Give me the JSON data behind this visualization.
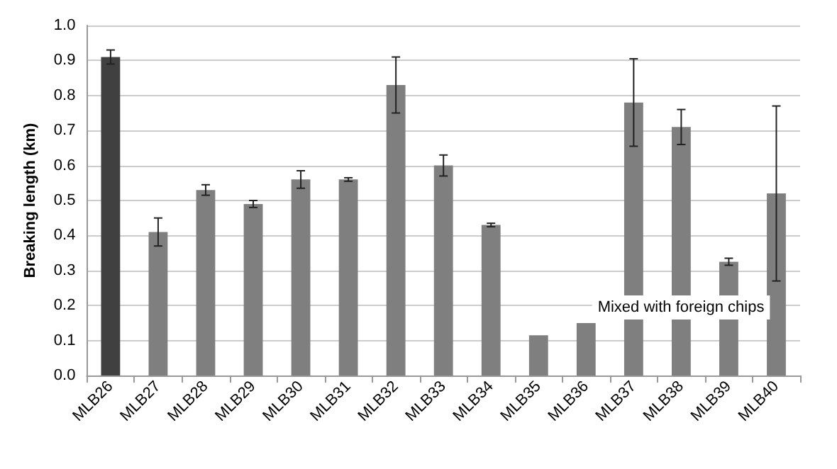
{
  "chart_data": {
    "type": "bar",
    "ylabel": "Breaking length (km)",
    "categories": [
      "MLB26",
      "MLB27",
      "MLB28",
      "MLB29",
      "MLB30",
      "MLB31",
      "MLB32",
      "MLB33",
      "MLB34",
      "MLB35",
      "MLB36",
      "MLB37",
      "MLB38",
      "MLB39",
      "MLB40"
    ],
    "values": [
      0.91,
      0.41,
      0.53,
      0.49,
      0.56,
      0.56,
      0.83,
      0.6,
      0.43,
      0.115,
      0.15,
      0.78,
      0.71,
      0.325,
      0.52
    ],
    "errors": [
      0.02,
      0.04,
      0.015,
      0.01,
      0.025,
      0.005,
      0.08,
      0.03,
      0.005,
      null,
      null,
      0.125,
      0.05,
      0.01,
      0.25
    ],
    "colors": [
      "#404040",
      "#7f7f7f",
      "#7f7f7f",
      "#7f7f7f",
      "#7f7f7f",
      "#7f7f7f",
      "#7f7f7f",
      "#7f7f7f",
      "#7f7f7f",
      "#7f7f7f",
      "#7f7f7f",
      "#7f7f7f",
      "#7f7f7f",
      "#7f7f7f",
      "#7f7f7f"
    ],
    "ylim": [
      0,
      1
    ],
    "yticks": [
      {
        "value": 0,
        "label": "0.0"
      },
      {
        "value": 0.1,
        "label": "0.1"
      },
      {
        "value": 0.2,
        "label": "0.2"
      },
      {
        "value": 0.3,
        "label": "0.3"
      },
      {
        "value": 0.4,
        "label": "0.4"
      },
      {
        "value": 0.5,
        "label": "0.5"
      },
      {
        "value": 0.6,
        "label": "0.6"
      },
      {
        "value": 0.7,
        "label": "0.7"
      },
      {
        "value": 0.8,
        "label": "0.8"
      },
      {
        "value": 0.9,
        "label": "0.9"
      },
      {
        "value": 1,
        "label": "1.0"
      }
    ],
    "grid": "y",
    "annotations": [
      "Mixed with foreign chips"
    ]
  }
}
